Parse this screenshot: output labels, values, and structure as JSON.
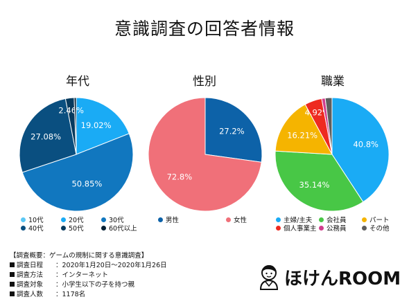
{
  "title": "意識調査の回答者情報",
  "chart_data": [
    {
      "type": "pie",
      "title": "年代",
      "categories": [
        "10代",
        "20代",
        "30代",
        "40代",
        "50代",
        "60代以上"
      ],
      "values": [
        0,
        19.02,
        50.85,
        27.08,
        2.46,
        0.59
      ],
      "labels": [
        "",
        "19.02%",
        "50.85%",
        "27.08%",
        "2.46%",
        ""
      ],
      "colors": [
        "#5bc8f5",
        "#1aabf5",
        "#1177bf",
        "#0a4f80",
        "#073a5e",
        "#041f33"
      ]
    },
    {
      "type": "pie",
      "title": "性別",
      "categories": [
        "男性",
        "女性"
      ],
      "values": [
        27.2,
        72.8
      ],
      "labels": [
        "27.2%",
        "72.8%"
      ],
      "colors": [
        "#0d62a8",
        "#f07079"
      ]
    },
    {
      "type": "pie",
      "title": "職業",
      "categories": [
        "主婦/主夫",
        "会社員",
        "パート",
        "個人事業主",
        "公務員",
        "その他"
      ],
      "values": [
        40.8,
        35.14,
        16.21,
        4.92,
        1.0,
        1.93
      ],
      "labels": [
        "40.8%",
        "35.14%",
        "16.21%",
        "4.92%",
        "",
        ""
      ],
      "colors": [
        "#1aabf5",
        "#48c746",
        "#f5b400",
        "#ee2a20",
        "#d13d8c",
        "#5e5e5e"
      ]
    }
  ],
  "footer": {
    "heading": "【調査概要：ゲームの規制に関する意識調査】",
    "rows": [
      {
        "key": "調査日程",
        "value": "：2020年1月20日〜2020年1月26日"
      },
      {
        "key": "調査方法",
        "value": "：インターネット"
      },
      {
        "key": "調査対象",
        "value": "：小学生以下の子を持つ親"
      },
      {
        "key": "調査人数",
        "value": "：1178名"
      }
    ]
  },
  "logo": {
    "text": "ほけんROOM"
  }
}
